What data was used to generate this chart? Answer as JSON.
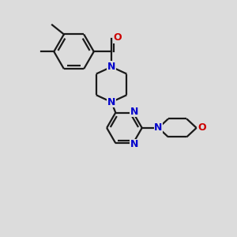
{
  "background_color": "#dcdcdc",
  "bond_color": "#1a1a1a",
  "N_color": "#0000cc",
  "O_color": "#cc0000",
  "lw": 1.6,
  "figsize": [
    3.0,
    3.0
  ],
  "dpi": 100,
  "xlim": [
    0,
    10
  ],
  "ylim": [
    0,
    10
  ],
  "label_fontsize": 9,
  "label_bg": "#dcdcdc"
}
